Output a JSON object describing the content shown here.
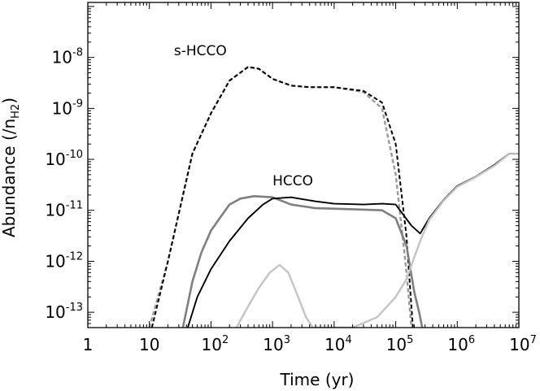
{
  "chart_data": {
    "type": "line",
    "title": "",
    "xlabel": "Time (yr)",
    "ylabel": "Abundance (/n",
    "ylabel_sub": "H2",
    "ylabel_close": ")",
    "xscale": "log",
    "yscale": "log",
    "xlim": [
      1,
      10000000
    ],
    "ylim": [
      5e-14,
      1.2e-07
    ],
    "grid": false,
    "legend": "none",
    "x_ticks": [
      {
        "value": 1,
        "base": "1",
        "exp": ""
      },
      {
        "value": 10,
        "base": "10",
        "exp": ""
      },
      {
        "value": 100,
        "base": "10",
        "exp": "2"
      },
      {
        "value": 1000,
        "base": "10",
        "exp": "3"
      },
      {
        "value": 10000,
        "base": "10",
        "exp": "4"
      },
      {
        "value": 100000,
        "base": "10",
        "exp": "5"
      },
      {
        "value": 1000000,
        "base": "10",
        "exp": "6"
      },
      {
        "value": 10000000,
        "base": "10",
        "exp": "7"
      }
    ],
    "y_ticks": [
      {
        "value": 1e-13,
        "base": "10",
        "exp": "-13"
      },
      {
        "value": 1e-12,
        "base": "10",
        "exp": "-12"
      },
      {
        "value": 1e-11,
        "base": "10",
        "exp": "-11"
      },
      {
        "value": 1e-10,
        "base": "10",
        "exp": "-10"
      },
      {
        "value": 1e-09,
        "base": "10",
        "exp": "-9"
      },
      {
        "value": 1e-08,
        "base": "10",
        "exp": "-8"
      }
    ],
    "annotations": [
      {
        "text": "s-HCCO",
        "x": 25,
        "y": 1.1e-08
      },
      {
        "text": "HCCO",
        "x": 1000,
        "y": 3.1e-11
      }
    ],
    "series": [
      {
        "name": "s-HCCO (grey dashed)",
        "color": "#999999",
        "dashed": true,
        "width": 2.4,
        "x": [
          10,
          20,
          50,
          100,
          200,
          400,
          600,
          1000,
          2000,
          4000,
          10000,
          30000,
          60000,
          100000,
          150000,
          180000
        ],
        "y": [
          5e-14,
          1e-12,
          1.3e-10,
          8e-10,
          3.5e-09,
          6.5e-09,
          6e-09,
          3.8e-09,
          2.8e-09,
          2.6e-09,
          2.6e-09,
          2.1e-09,
          1e-09,
          5e-11,
          6e-13,
          5e-14
        ]
      },
      {
        "name": "s-HCCO (black dashed)",
        "color": "#000000",
        "dashed": true,
        "width": 2.0,
        "x": [
          11,
          20,
          50,
          100,
          200,
          400,
          600,
          1000,
          2000,
          4000,
          10000,
          30000,
          60000,
          100000,
          150000,
          190000
        ],
        "y": [
          5e-14,
          1e-12,
          1.3e-10,
          8e-10,
          3.5e-09,
          6.5e-09,
          6e-09,
          3.8e-09,
          2.8e-09,
          2.6e-09,
          2.6e-09,
          2.2e-09,
          1.3e-09,
          2e-10,
          3e-12,
          5e-14
        ]
      },
      {
        "name": "HCCO (dark grey)",
        "color": "#7f7f7f",
        "dashed": false,
        "width": 2.6,
        "x": [
          35,
          50,
          70,
          100,
          150,
          200,
          300,
          500,
          1000,
          2000,
          5000,
          20000,
          60000,
          100000,
          150000,
          200000,
          240000,
          270000
        ],
        "y": [
          5e-14,
          4e-13,
          1.5e-12,
          4e-12,
          8e-12,
          1.3e-11,
          1.7e-11,
          1.9e-11,
          1.8e-11,
          1.3e-11,
          1.1e-11,
          1.05e-11,
          1e-11,
          7e-12,
          2e-12,
          2.5e-13,
          1e-13,
          5e-14
        ]
      },
      {
        "name": "HCCO (black)",
        "color": "#000000",
        "dashed": false,
        "width": 1.9,
        "x": [
          42,
          60,
          100,
          200,
          400,
          700,
          1000,
          2000,
          5000,
          10000,
          30000,
          60000,
          100000,
          130000,
          180000,
          250000,
          350000,
          600000,
          1000000,
          2000000,
          4000000,
          7000000,
          10000000
        ],
        "y": [
          5e-14,
          2e-13,
          7e-13,
          2.5e-12,
          7e-12,
          1.3e-11,
          1.7e-11,
          1.8e-11,
          1.5e-11,
          1.35e-11,
          1.3e-11,
          1.35e-11,
          1.3e-11,
          8.5e-12,
          5e-12,
          3.5e-12,
          7e-12,
          1.6e-11,
          3e-11,
          4.6e-11,
          7.8e-11,
          1.3e-10,
          1.3e-10
        ]
      },
      {
        "name": "HCCO (light grey)",
        "color": "#c4c4c4",
        "dashed": false,
        "width": 2.4,
        "x": [
          260,
          400,
          600,
          900,
          1300,
          1800,
          2600,
          3500,
          4500,
          8000,
          20000,
          50000,
          100000,
          150000,
          200000,
          250000,
          350000,
          600000,
          1000000,
          2000000,
          4000000,
          7000000,
          10000000
        ],
        "y": [
          5e-14,
          1.3e-13,
          3e-13,
          6e-13,
          8.5e-13,
          6e-13,
          2e-13,
          8e-14,
          5e-14,
          5e-14,
          5e-14,
          8e-14,
          2e-13,
          4.5e-13,
          1.2e-12,
          2.5e-12,
          6.5e-12,
          1.55e-11,
          2.9e-11,
          4.5e-11,
          7.5e-11,
          1.28e-10,
          1.28e-10
        ]
      }
    ]
  }
}
